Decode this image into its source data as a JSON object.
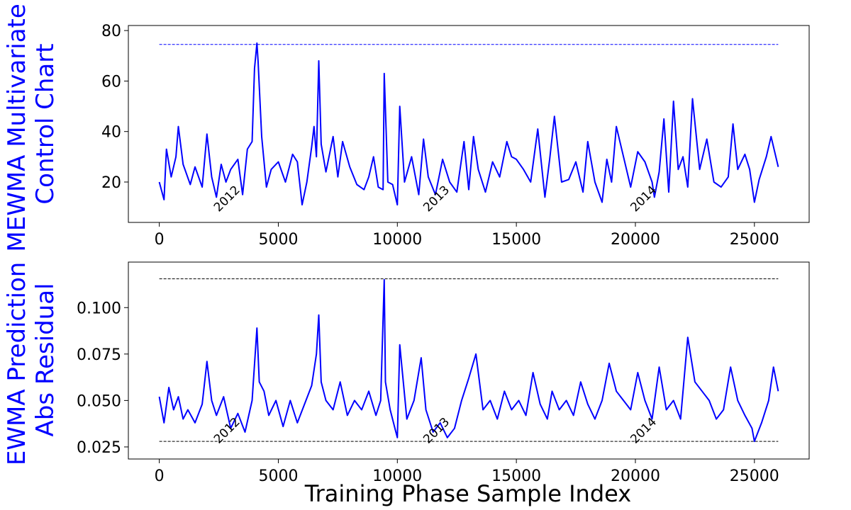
{
  "colors": {
    "series": "#0000ff",
    "ylabel": "#0000ff",
    "limit_top": "#0000ff",
    "limit_bottom": "#000000"
  },
  "xlabel": "Training Phase Sample Index",
  "chart_data": [
    {
      "type": "line",
      "ylabel_lines": [
        "MEWMA Multivariate",
        "Control Chart"
      ],
      "xlim": [
        -1300,
        27300
      ],
      "ylim": [
        4,
        82
      ],
      "xticks": [
        0,
        5000,
        10000,
        15000,
        20000,
        25000
      ],
      "yticks": [
        20,
        40,
        60,
        80
      ],
      "ytick_labels": [
        "20",
        "40",
        "60",
        "80"
      ],
      "control_limit": 74.5,
      "control_limit_style": "dashed",
      "grid": false,
      "year_annotations": [
        {
          "text": "2012",
          "x": 2500,
          "y": 8
        },
        {
          "text": "2013",
          "x": 11300,
          "y": 8
        },
        {
          "text": "2014",
          "x": 20000,
          "y": 8
        }
      ],
      "series": [
        {
          "x": [
            0,
            200,
            300,
            500,
            700,
            800,
            1000,
            1300,
            1500,
            1800,
            2000,
            2200,
            2400,
            2600,
            2800,
            3000,
            3300,
            3500,
            3700,
            3900,
            4000,
            4100,
            4150,
            4300,
            4500,
            4700,
            5000,
            5300,
            5600,
            5800,
            6000,
            6200,
            6400,
            6500,
            6600,
            6700,
            6800,
            7000,
            7300,
            7500,
            7700,
            8000,
            8300,
            8600,
            8800,
            9000,
            9200,
            9400,
            9450,
            9600,
            9800,
            10000,
            10100,
            10300,
            10600,
            10900,
            11100,
            11300,
            11600,
            11900,
            12200,
            12500,
            12800,
            13000,
            13200,
            13400,
            13700,
            14000,
            14300,
            14600,
            14800,
            15000,
            15300,
            15600,
            15900,
            16200,
            16400,
            16600,
            16900,
            17200,
            17500,
            17800,
            18000,
            18300,
            18600,
            18800,
            19000,
            19200,
            19500,
            19800,
            20100,
            20400,
            20700,
            20800,
            21000,
            21200,
            21400,
            21600,
            21800,
            22000,
            22200,
            22400,
            22700,
            23000,
            23300,
            23600,
            23900,
            24100,
            24300,
            24600,
            24800,
            25000,
            25200,
            25500,
            25700,
            26000
          ],
          "values": [
            20,
            13,
            33,
            22,
            30,
            42,
            27,
            19,
            26,
            18,
            39,
            22,
            14,
            27,
            20,
            25,
            29,
            15,
            33,
            36,
            65,
            75,
            68,
            38,
            18,
            25,
            28,
            20,
            31,
            28,
            11,
            20,
            34,
            42,
            30,
            68,
            35,
            24,
            38,
            22,
            36,
            26,
            19,
            17,
            22,
            30,
            18,
            17,
            63,
            20,
            19,
            11,
            50,
            20,
            30,
            15,
            37,
            22,
            15,
            29,
            20,
            16,
            36,
            17,
            38,
            25,
            16,
            28,
            22,
            36,
            30,
            29,
            25,
            20,
            41,
            14,
            29,
            46,
            20,
            21,
            28,
            16,
            36,
            20,
            12,
            29,
            20,
            42,
            30,
            18,
            32,
            28,
            20,
            14,
            24,
            45,
            16,
            52,
            25,
            30,
            18,
            53,
            25,
            37,
            20,
            18,
            22,
            43,
            25,
            31,
            25,
            12,
            21,
            30,
            38,
            26
          ]
        }
      ]
    },
    {
      "type": "line",
      "ylabel_lines": [
        "EWMA Prediction",
        "Abs Residual"
      ],
      "xlim": [
        -1300,
        27300
      ],
      "ylim": [
        0.0185,
        0.1245
      ],
      "xticks": [
        0,
        5000,
        10000,
        15000,
        20000,
        25000
      ],
      "yticks": [
        0.025,
        0.05,
        0.075,
        0.1
      ],
      "ytick_labels": [
        "0.025",
        "0.050",
        "0.075",
        "0.100"
      ],
      "control_limit_upper": 0.1155,
      "control_limit_lower": 0.028,
      "control_limit_style": "dashed",
      "grid": false,
      "year_annotations": [
        {
          "text": "2012",
          "x": 2500,
          "y": 0.0265
        },
        {
          "text": "2013",
          "x": 11300,
          "y": 0.0265
        },
        {
          "text": "2014",
          "x": 20000,
          "y": 0.0265
        }
      ],
      "series": [
        {
          "x": [
            0,
            200,
            400,
            600,
            800,
            1000,
            1200,
            1500,
            1800,
            2000,
            2200,
            2400,
            2700,
            3000,
            3300,
            3600,
            3900,
            4100,
            4200,
            4400,
            4600,
            4900,
            5200,
            5500,
            5800,
            6100,
            6400,
            6600,
            6700,
            6800,
            7000,
            7300,
            7600,
            7900,
            8200,
            8500,
            8800,
            9100,
            9300,
            9450,
            9500,
            9700,
            9900,
            10000,
            10100,
            10400,
            10700,
            11000,
            11200,
            11500,
            11800,
            12100,
            12400,
            12700,
            13000,
            13300,
            13600,
            13900,
            14200,
            14500,
            14800,
            15100,
            15400,
            15700,
            16000,
            16300,
            16500,
            16800,
            17100,
            17400,
            17700,
            18000,
            18300,
            18600,
            18900,
            19200,
            19500,
            19800,
            20100,
            20400,
            20700,
            21000,
            21300,
            21600,
            21900,
            22200,
            22500,
            22800,
            23100,
            23400,
            23700,
            24000,
            24300,
            24600,
            24900,
            25000,
            25300,
            25600,
            25800,
            26000
          ],
          "values": [
            0.052,
            0.038,
            0.057,
            0.045,
            0.052,
            0.04,
            0.045,
            0.038,
            0.048,
            0.071,
            0.05,
            0.042,
            0.052,
            0.035,
            0.043,
            0.033,
            0.05,
            0.089,
            0.06,
            0.055,
            0.042,
            0.05,
            0.036,
            0.05,
            0.038,
            0.048,
            0.058,
            0.075,
            0.096,
            0.06,
            0.05,
            0.045,
            0.06,
            0.042,
            0.05,
            0.045,
            0.055,
            0.042,
            0.05,
            0.115,
            0.06,
            0.045,
            0.035,
            0.03,
            0.08,
            0.04,
            0.05,
            0.073,
            0.045,
            0.033,
            0.038,
            0.03,
            0.035,
            0.05,
            0.062,
            0.075,
            0.045,
            0.05,
            0.04,
            0.055,
            0.045,
            0.05,
            0.042,
            0.065,
            0.048,
            0.04,
            0.055,
            0.045,
            0.05,
            0.042,
            0.06,
            0.048,
            0.04,
            0.05,
            0.07,
            0.055,
            0.05,
            0.045,
            0.065,
            0.05,
            0.04,
            0.068,
            0.045,
            0.05,
            0.04,
            0.084,
            0.06,
            0.055,
            0.05,
            0.04,
            0.045,
            0.068,
            0.05,
            0.042,
            0.035,
            0.028,
            0.038,
            0.05,
            0.068,
            0.055
          ]
        }
      ]
    }
  ]
}
